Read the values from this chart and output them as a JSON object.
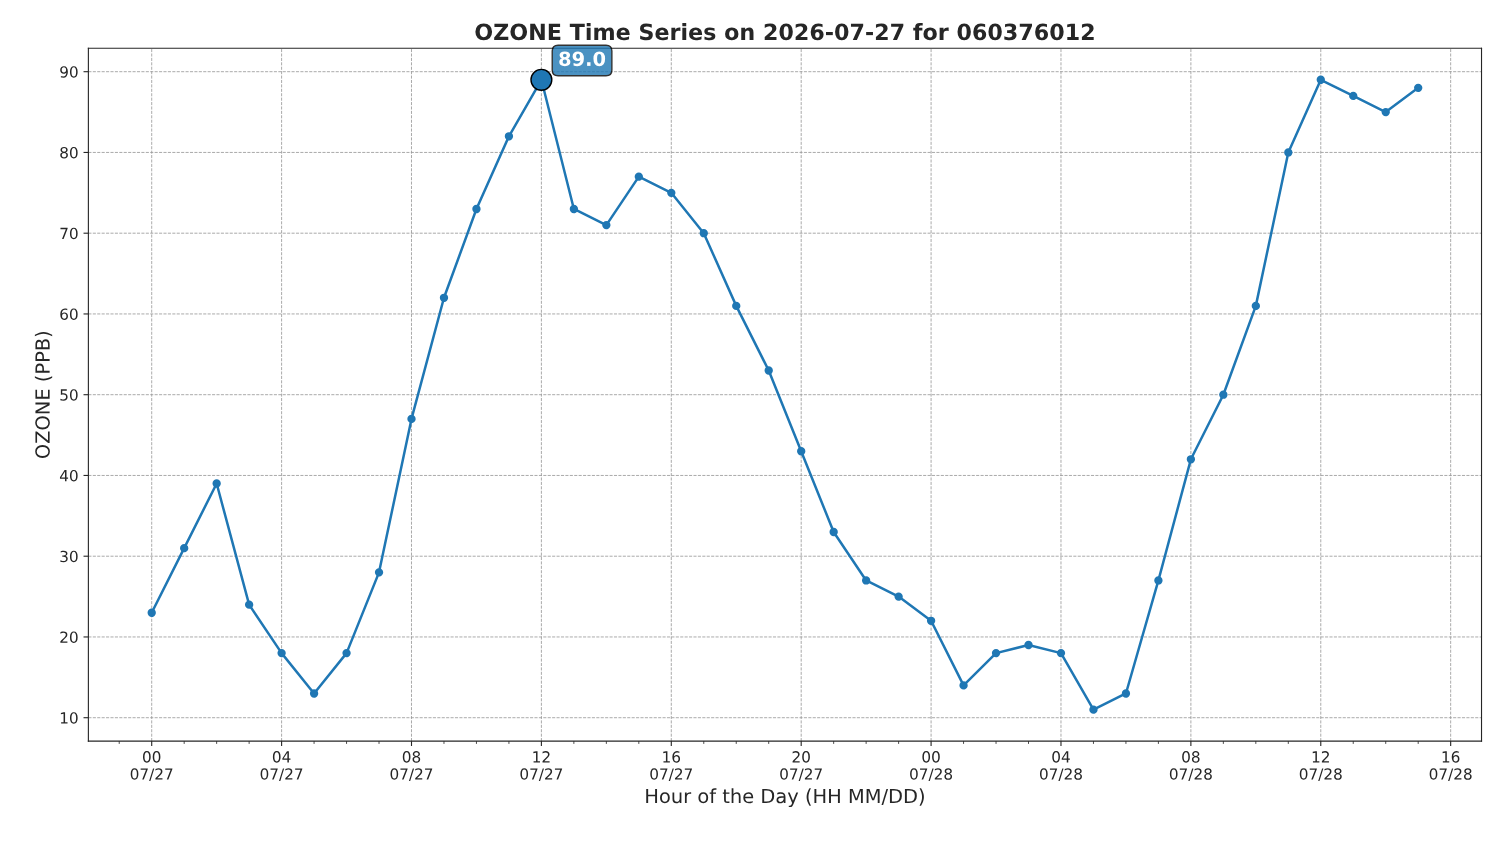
{
  "chart_data": {
    "type": "line",
    "title": "OZONE Time Series on 2026-07-27 for 060376012",
    "xlabel": "Hour of the Day (HH MM/DD)",
    "ylabel": "OZONE (PPB)",
    "x": [
      "2026-07-27T00:00",
      "2026-07-27T01:00",
      "2026-07-27T02:00",
      "2026-07-27T03:00",
      "2026-07-27T04:00",
      "2026-07-27T05:00",
      "2026-07-27T06:00",
      "2026-07-27T07:00",
      "2026-07-27T08:00",
      "2026-07-27T09:00",
      "2026-07-27T10:00",
      "2026-07-27T11:00",
      "2026-07-27T12:00",
      "2026-07-27T13:00",
      "2026-07-27T14:00",
      "2026-07-27T15:00",
      "2026-07-27T16:00",
      "2026-07-27T17:00",
      "2026-07-27T18:00",
      "2026-07-27T19:00",
      "2026-07-27T20:00",
      "2026-07-27T21:00",
      "2026-07-27T22:00",
      "2026-07-27T23:00",
      "2026-07-28T00:00",
      "2026-07-28T01:00",
      "2026-07-28T02:00",
      "2026-07-28T03:00",
      "2026-07-28T04:00",
      "2026-07-28T05:00",
      "2026-07-28T06:00",
      "2026-07-28T07:00",
      "2026-07-28T08:00",
      "2026-07-28T09:00",
      "2026-07-28T10:00",
      "2026-07-28T11:00",
      "2026-07-28T12:00",
      "2026-07-28T13:00",
      "2026-07-28T14:00",
      "2026-07-28T15:00"
    ],
    "series": [
      {
        "color": "#1f77b4",
        "values": [
          23,
          31,
          39,
          24,
          18,
          13,
          18,
          28,
          47,
          62,
          73,
          82,
          89,
          73,
          71,
          77,
          75,
          70,
          61,
          53,
          43,
          33,
          27,
          25,
          22,
          14,
          18,
          19,
          18,
          11,
          13,
          27,
          42,
          50,
          61,
          80,
          89,
          87,
          85,
          88
        ]
      }
    ],
    "marker": "circle",
    "line_style": "solid",
    "grid": true,
    "xlim": [
      "2026-07-26T22:03",
      "2026-07-28T16:57"
    ],
    "xticks": [
      {
        "value": "2026-07-26T23:00",
        "label": null
      },
      {
        "value": "2026-07-27T00:00",
        "label": "00\n07/27"
      },
      {
        "value": "2026-07-27T01:00",
        "label": null
      },
      {
        "value": "2026-07-27T02:00",
        "label": null
      },
      {
        "value": "2026-07-27T03:00",
        "label": null
      },
      {
        "value": "2026-07-27T04:00",
        "label": "04\n07/27"
      },
      {
        "value": "2026-07-27T05:00",
        "label": null
      },
      {
        "value": "2026-07-27T06:00",
        "label": null
      },
      {
        "value": "2026-07-27T07:00",
        "label": null
      },
      {
        "value": "2026-07-27T08:00",
        "label": "08\n07/27"
      },
      {
        "value": "2026-07-27T09:00",
        "label": null
      },
      {
        "value": "2026-07-27T10:00",
        "label": null
      },
      {
        "value": "2026-07-27T11:00",
        "label": null
      },
      {
        "value": "2026-07-27T12:00",
        "label": "12\n07/27"
      },
      {
        "value": "2026-07-27T13:00",
        "label": null
      },
      {
        "value": "2026-07-27T14:00",
        "label": null
      },
      {
        "value": "2026-07-27T15:00",
        "label": null
      },
      {
        "value": "2026-07-27T16:00",
        "label": "16\n07/27"
      },
      {
        "value": "2026-07-27T17:00",
        "label": null
      },
      {
        "value": "2026-07-27T18:00",
        "label": null
      },
      {
        "value": "2026-07-27T19:00",
        "label": null
      },
      {
        "value": "2026-07-27T20:00",
        "label": "20\n07/27"
      },
      {
        "value": "2026-07-27T21:00",
        "label": null
      },
      {
        "value": "2026-07-27T22:00",
        "label": null
      },
      {
        "value": "2026-07-27T23:00",
        "label": null
      },
      {
        "value": "2026-07-28T00:00",
        "label": "00\n07/28"
      },
      {
        "value": "2026-07-28T01:00",
        "label": null
      },
      {
        "value": "2026-07-28T02:00",
        "label": null
      },
      {
        "value": "2026-07-28T03:00",
        "label": null
      },
      {
        "value": "2026-07-28T04:00",
        "label": "04\n07/28"
      },
      {
        "value": "2026-07-28T05:00",
        "label": null
      },
      {
        "value": "2026-07-28T06:00",
        "label": null
      },
      {
        "value": "2026-07-28T07:00",
        "label": null
      },
      {
        "value": "2026-07-28T08:00",
        "label": "08\n07/28"
      },
      {
        "value": "2026-07-28T09:00",
        "label": null
      },
      {
        "value": "2026-07-28T10:00",
        "label": null
      },
      {
        "value": "2026-07-28T11:00",
        "label": null
      },
      {
        "value": "2026-07-28T12:00",
        "label": "12\n07/28"
      },
      {
        "value": "2026-07-28T13:00",
        "label": null
      },
      {
        "value": "2026-07-28T14:00",
        "label": null
      },
      {
        "value": "2026-07-28T15:00",
        "label": null
      },
      {
        "value": "2026-07-28T16:00",
        "label": "16\n07/28"
      }
    ],
    "ylim": [
      7.1,
      92.9
    ],
    "yticks": [
      10,
      20,
      30,
      40,
      50,
      60,
      70,
      80,
      90
    ],
    "annotations": [
      {
        "text": "89.0",
        "x": "2026-07-27T12:00",
        "y": 89
      }
    ]
  }
}
